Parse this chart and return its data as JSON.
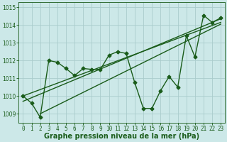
{
  "title": "Graphe pression niveau de la mer (hPa)",
  "bg_color": "#cce8e8",
  "line_color": "#1a5c1a",
  "grid_color": "#aacccc",
  "x_values": [
    0,
    1,
    2,
    3,
    4,
    5,
    6,
    7,
    8,
    9,
    10,
    11,
    12,
    13,
    14,
    15,
    16,
    17,
    18,
    19,
    20,
    21,
    22,
    23
  ],
  "y_values": [
    1010.0,
    1009.6,
    1008.8,
    1012.0,
    1011.9,
    1011.55,
    1011.15,
    1011.55,
    1011.5,
    1011.5,
    1012.3,
    1012.5,
    1012.4,
    1010.75,
    1009.3,
    1009.3,
    1010.3,
    1011.1,
    1010.5,
    1013.4,
    1012.2,
    1014.55,
    1014.15,
    1014.4
  ],
  "trend1_x": [
    0,
    23
  ],
  "trend1_y": [
    1009.7,
    1014.35
  ],
  "trend2_x": [
    0,
    23
  ],
  "trend2_y": [
    1010.0,
    1014.15
  ],
  "trend3_x": [
    2,
    23
  ],
  "trend3_y": [
    1009.0,
    1014.05
  ],
  "ylim_min": 1008.5,
  "ylim_max": 1015.3,
  "yticks": [
    1009,
    1010,
    1011,
    1012,
    1013,
    1014,
    1015
  ],
  "xticks": [
    0,
    1,
    2,
    3,
    4,
    5,
    6,
    7,
    8,
    9,
    10,
    11,
    12,
    13,
    14,
    15,
    16,
    17,
    18,
    19,
    20,
    21,
    22,
    23
  ],
  "marker": "D",
  "markersize": 2.5,
  "linewidth": 1.0,
  "tick_fontsize": 5.5,
  "label_fontsize": 7.0
}
